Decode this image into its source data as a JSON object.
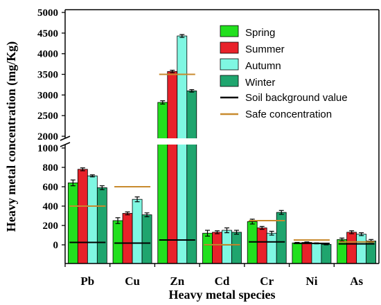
{
  "chart_data": {
    "type": "bar",
    "title": "",
    "xlabel": "Heavy metal species",
    "ylabel": "Heavy metal concentration (mg/Kg)",
    "categories": [
      "Pb",
      "Cu",
      "Zn",
      "Cd",
      "Cr",
      "Ni",
      "As"
    ],
    "y_axis": {
      "broken": true,
      "lower_range": [
        -150,
        1000
      ],
      "lower_ticks": [
        0,
        200,
        400,
        600,
        800,
        1000
      ],
      "upper_range": [
        2000,
        5000
      ],
      "upper_ticks": [
        2000,
        2500,
        3000,
        3500,
        4000,
        4500,
        5000
      ]
    },
    "series": [
      {
        "name": "Spring",
        "color": "#22e01e",
        "values": [
          640,
          250,
          2820,
          120,
          240,
          20,
          55
        ],
        "errors": [
          30,
          30,
          40,
          30,
          25,
          5,
          15
        ]
      },
      {
        "name": "Summer",
        "color": "#e8212a",
        "values": [
          780,
          325,
          3570,
          130,
          175,
          25,
          130
        ],
        "errors": [
          15,
          15,
          30,
          15,
          15,
          5,
          15
        ]
      },
      {
        "name": "Autumn",
        "color": "#7ff7e2",
        "values": [
          1040,
          470,
          4430,
          150,
          120,
          15,
          110
        ],
        "errors": [
          25,
          25,
          35,
          25,
          20,
          5,
          15
        ]
      },
      {
        "name": "Winter",
        "color": "#1fa56e",
        "values": [
          590,
          310,
          3100,
          130,
          335,
          5,
          40
        ],
        "errors": [
          20,
          20,
          30,
          20,
          20,
          5,
          15
        ]
      }
    ],
    "reference_lines": [
      {
        "name": "Soil background value",
        "color": "#000000",
        "values": [
          25,
          18,
          50,
          0.1,
          30,
          15,
          10
        ]
      },
      {
        "name": "Safe concentration",
        "color": "#c88a2d",
        "values": [
          400,
          600,
          3500,
          0.6,
          250,
          50,
          30
        ]
      }
    ],
    "legend_position": "top-right",
    "grid": false
  }
}
